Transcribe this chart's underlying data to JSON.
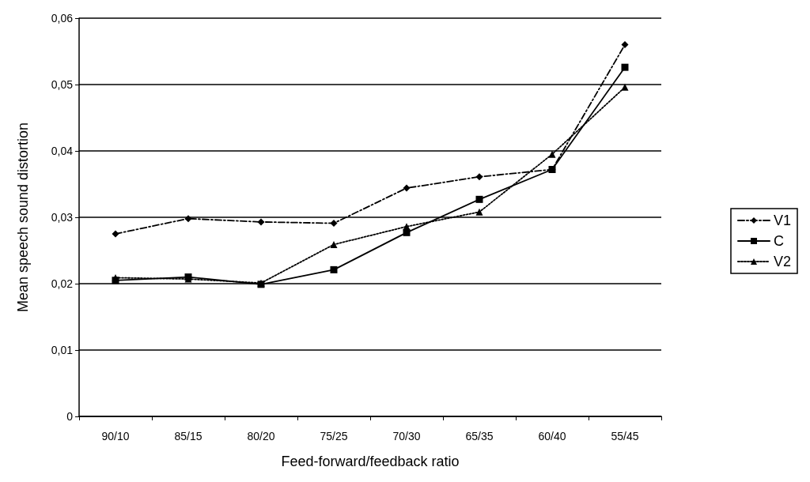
{
  "chart_data": {
    "type": "line",
    "xlabel": "Feed-forward/feedback ratio",
    "ylabel": "Mean speech sound distortion",
    "categories": [
      "90/10",
      "85/15",
      "80/20",
      "75/25",
      "70/30",
      "65/35",
      "60/40",
      "55/45"
    ],
    "ylim": [
      0,
      0.06
    ],
    "yticks": [
      0,
      {
        "value": 0.01,
        "label": "0,01"
      },
      {
        "value": 0.02,
        "label": "0,02"
      },
      {
        "value": 0.03,
        "label": "0,03"
      },
      {
        "value": 0.04,
        "label": "0,04"
      },
      {
        "value": 0.05,
        "label": "0,05"
      },
      {
        "value": 0.06,
        "label": "0,06"
      }
    ],
    "grid": "y",
    "legend": "right",
    "series": [
      {
        "name": "V1",
        "color": "#000000",
        "marker": "diamond",
        "line_style": "dashdot",
        "values": [
          0.0275,
          0.0298,
          0.0293,
          0.0291,
          0.0344,
          0.0361,
          0.0372,
          0.056
        ]
      },
      {
        "name": "C",
        "color": "#000000",
        "marker": "square",
        "line_style": "solid",
        "values": [
          0.0205,
          0.021,
          0.0199,
          0.0221,
          0.0277,
          0.0327,
          0.0372,
          0.0526
        ]
      },
      {
        "name": "V2",
        "color": "#000000",
        "marker": "triangle",
        "line_style": "dotted",
        "values": [
          0.0209,
          0.0207,
          0.0201,
          0.0259,
          0.0286,
          0.0308,
          0.0395,
          0.0496
        ]
      }
    ]
  }
}
